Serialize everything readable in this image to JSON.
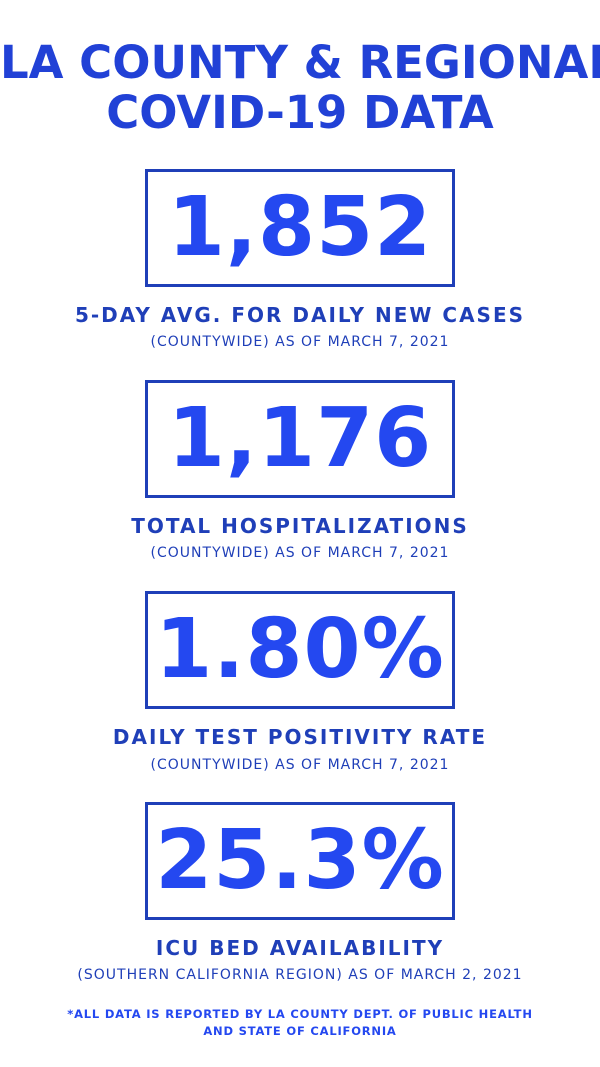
{
  "title": {
    "line1": "LA COUNTY & REGIONAL",
    "line2": "COVID-19 DATA"
  },
  "stats": [
    {
      "value": "1,852",
      "label": "5-DAY AVG. FOR DAILY NEW CASES",
      "sub": "(COUNTYWIDE) AS OF MARCH 7, 2021"
    },
    {
      "value": "1,176",
      "label": "TOTAL HOSPITALIZATIONS",
      "sub": "(COUNTYWIDE) AS OF MARCH 7, 2021"
    },
    {
      "value": "1.80%",
      "label": "DAILY TEST POSITIVITY RATE",
      "sub": "(COUNTYWIDE) AS OF MARCH 7, 2021"
    },
    {
      "value": "25.3%",
      "label": "ICU BED AVAILABILITY",
      "sub": "(SOUTHERN CALIFORNIA REGION) AS OF MARCH 2, 2021"
    }
  ],
  "footnote": {
    "line1": "*ALL DATA IS REPORTED BY LA COUNTY DEPT. OF PUBLIC HEALTH",
    "line2": "AND STATE OF CALIFORNIA"
  },
  "colors": {
    "primary": "#2448f0",
    "border": "#1f3fb8",
    "background": "#ffffff"
  }
}
